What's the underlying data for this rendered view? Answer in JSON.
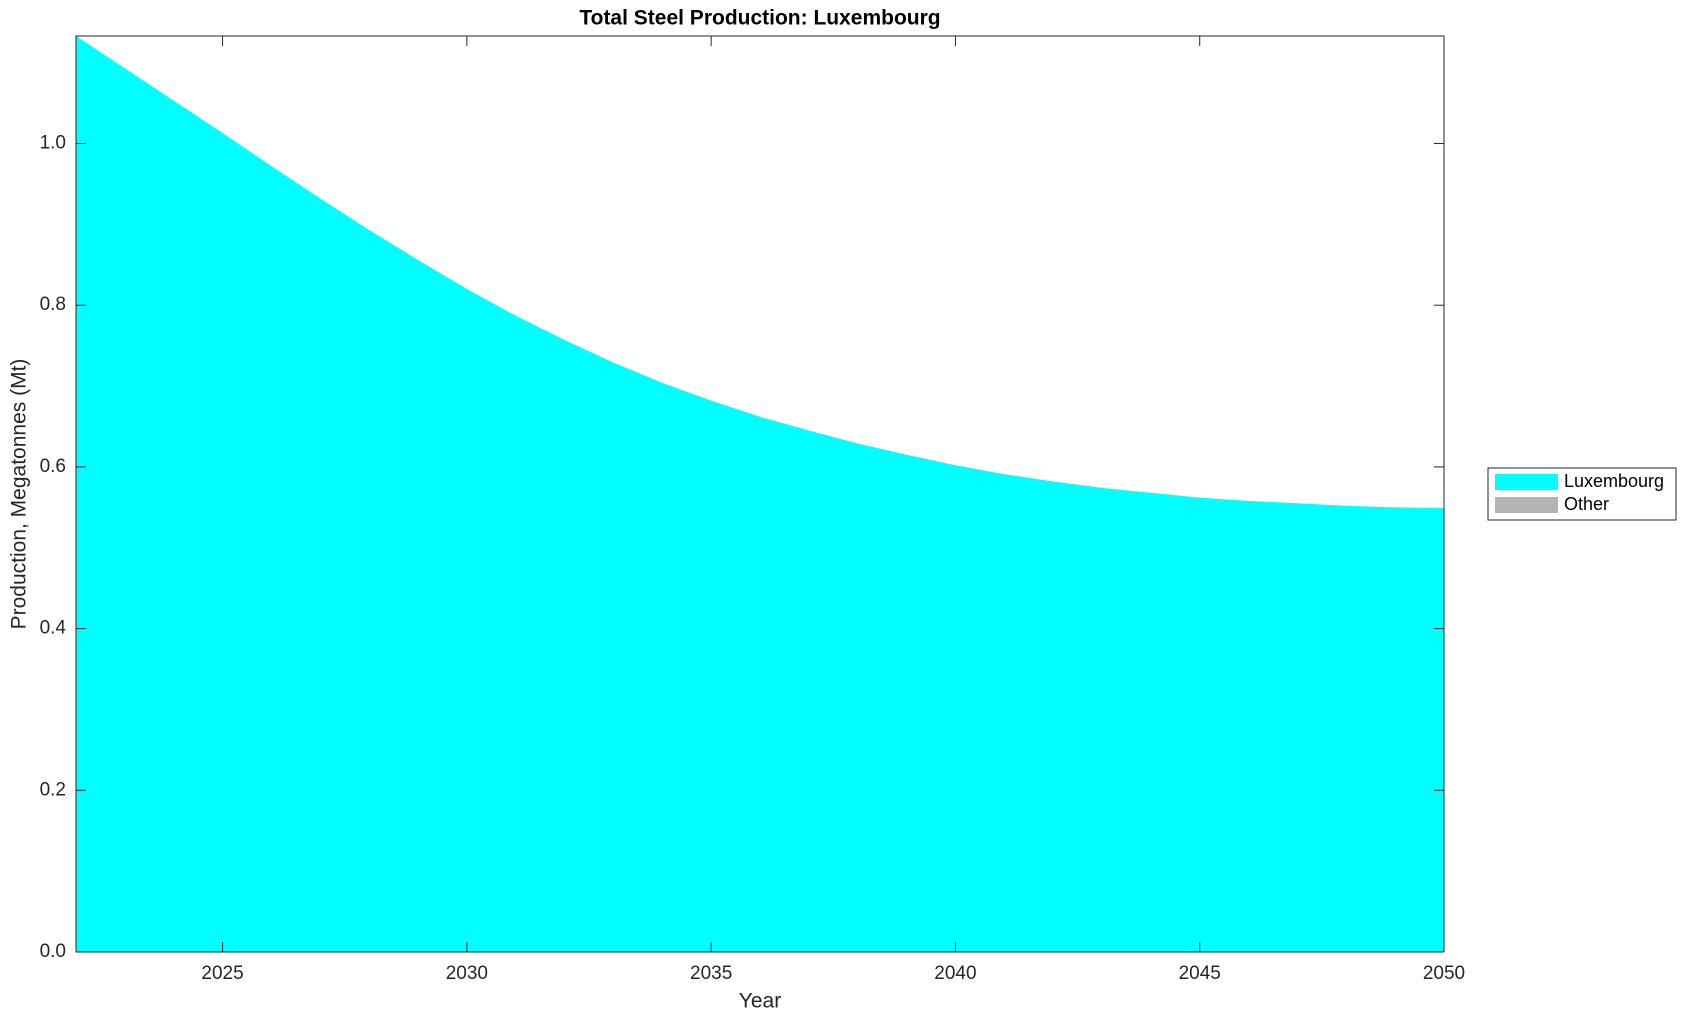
{
  "chart_data": {
    "type": "area",
    "title": "Total Steel Production: Luxembourg",
    "xlabel": "Year",
    "ylabel": "Production, Megatonnes (Mt)",
    "x": [
      2022,
      2023,
      2024,
      2025,
      2026,
      2027,
      2028,
      2029,
      2030,
      2031,
      2032,
      2033,
      2034,
      2035,
      2036,
      2037,
      2038,
      2039,
      2040,
      2041,
      2042,
      2043,
      2044,
      2045,
      2046,
      2047,
      2048,
      2049,
      2050
    ],
    "series": [
      {
        "name": "Luxembourg",
        "color": "#00ffff",
        "values": [
          1.133,
          1.093,
          1.053,
          1.013,
          0.972,
          0.932,
          0.893,
          0.856,
          0.82,
          0.787,
          0.757,
          0.729,
          0.704,
          0.682,
          0.662,
          0.645,
          0.629,
          0.615,
          0.602,
          0.591,
          0.582,
          0.574,
          0.568,
          0.562,
          0.558,
          0.555,
          0.552,
          0.55,
          0.549
        ]
      },
      {
        "name": "Other",
        "color": "#b3b3b3",
        "values": [
          0,
          0,
          0,
          0,
          0,
          0,
          0,
          0,
          0,
          0,
          0,
          0,
          0,
          0,
          0,
          0,
          0,
          0,
          0,
          0,
          0,
          0,
          0,
          0,
          0,
          0,
          0,
          0,
          0
        ]
      }
    ],
    "stacked": true,
    "xlim": [
      2022,
      2050
    ],
    "xticks": [
      2025,
      2030,
      2035,
      2040,
      2045,
      2050
    ],
    "ylim": [
      0,
      1.133
    ],
    "yticks": [
      {
        "value": 0,
        "label": "0.0"
      },
      0.2,
      0.4,
      0.6,
      0.8,
      {
        "value": 1,
        "label": "1.0"
      }
    ],
    "grid": false,
    "legend": "east"
  }
}
